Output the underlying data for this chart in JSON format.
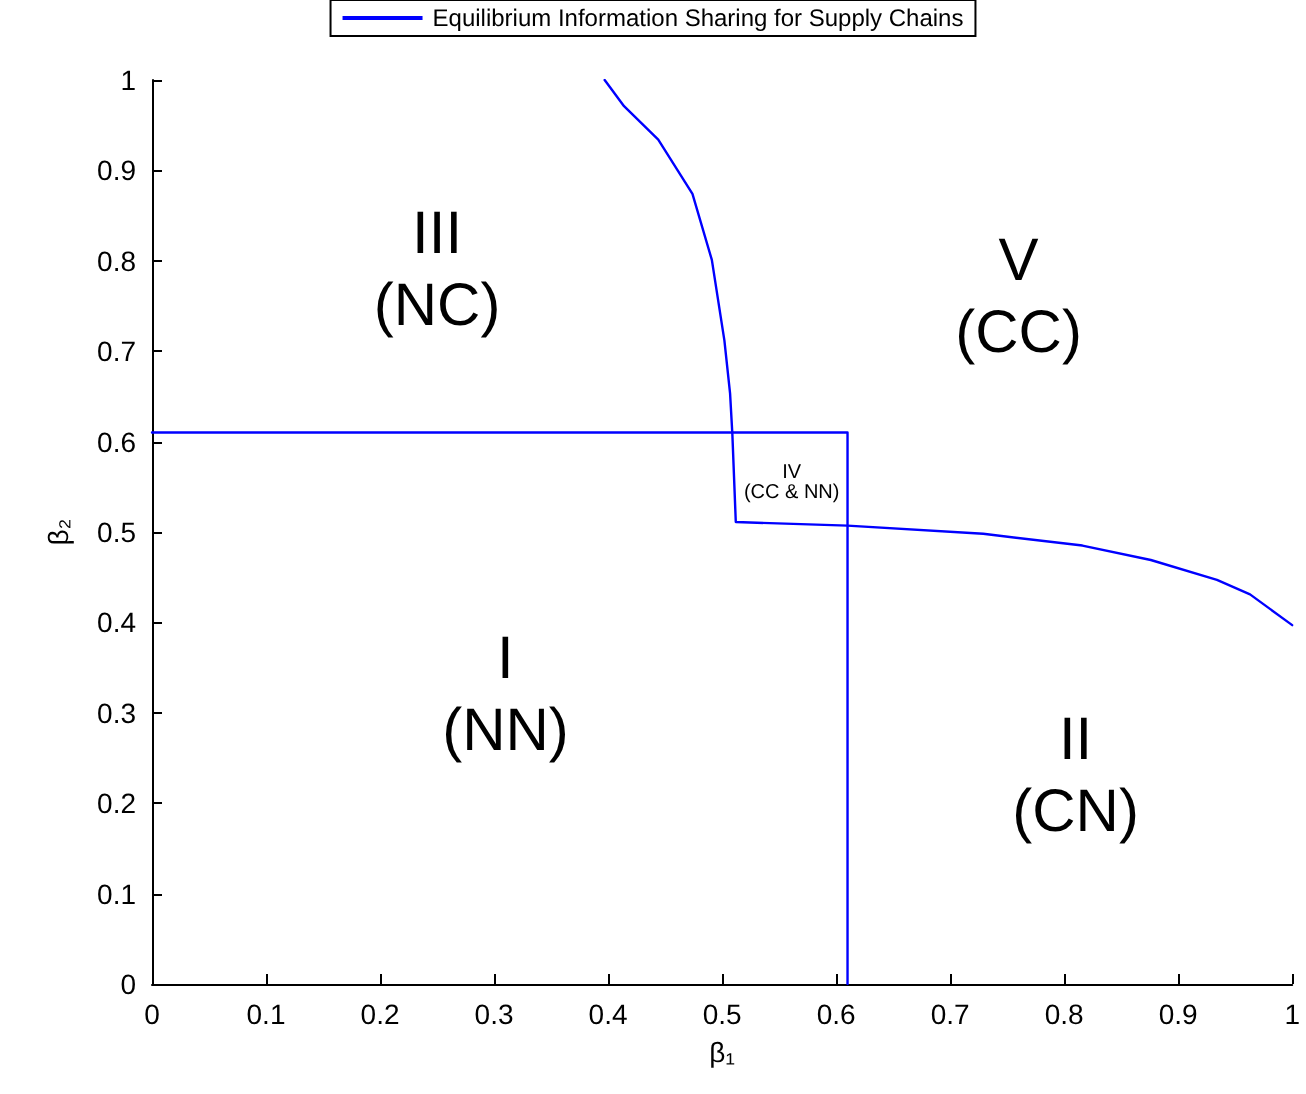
{
  "chart_data": {
    "type": "line",
    "xlabel": "β₁",
    "ylabel": "β₂",
    "xlim": [
      0,
      1
    ],
    "ylim": [
      0,
      1
    ],
    "xticks": [
      0,
      0.1,
      0.2,
      0.3,
      0.4,
      0.5,
      0.6,
      0.7,
      0.8,
      0.9,
      1
    ],
    "yticks": [
      0,
      0.1,
      0.2,
      0.3,
      0.4,
      0.5,
      0.6,
      0.7,
      0.8,
      0.9,
      1
    ],
    "grid": false,
    "legend": "top",
    "marker": "none",
    "line_style": "solid",
    "series": [
      {
        "name": "Equilibrium Information Sharing for Supply Chains",
        "color": "#0000ff",
        "x": [
          0.397,
          0.414,
          0.444,
          0.474,
          0.491,
          0.502,
          0.507,
          0.509,
          0.512,
          0.61,
          0.729,
          0.816,
          0.876,
          0.934,
          0.963,
          1
        ],
        "values": [
          1,
          0.971,
          0.934,
          0.874,
          0.801,
          0.712,
          0.653,
          0.608,
          0.511,
          0.507,
          0.498,
          0.485,
          0.469,
          0.447,
          0.431,
          0.397
        ]
      },
      {
        "color": "#0000ff",
        "x": [
          0,
          0.61,
          0.61
        ],
        "values": [
          0.61,
          0.61,
          0
        ]
      }
    ],
    "annotations": [
      "III",
      "(NC)",
      "V",
      "(CC)",
      "I",
      "(NN)",
      "II",
      "(CN)",
      "IV",
      "(CC & NN)"
    ]
  }
}
